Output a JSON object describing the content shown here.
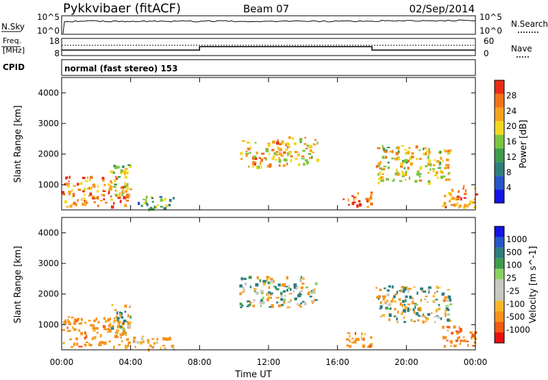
{
  "header": {
    "station": "Pykkvibaer (fitACF)",
    "beam": "Beam 07",
    "date": "02/Sep/2014"
  },
  "status": {
    "nsky_label": "N.Sky",
    "nsky_ticks": [
      "10^5",
      "10^0"
    ],
    "nsearch_label": "N.Search",
    "nsearch_ticks": [
      "10^5",
      "10^0"
    ],
    "freq_label_1": "Freq.",
    "freq_label_2": "[MHz]",
    "freq_ticks": [
      "18",
      "8"
    ],
    "nave_label": "Nave",
    "nave_ticks": [
      "60",
      "0"
    ],
    "cpid_label": "CPID",
    "cpid_text": "normal (fast stereo) 153"
  },
  "colors": {
    "power_scale": [
      "#1414e6",
      "#2457c8",
      "#2e7d7d",
      "#3b9d4c",
      "#7cc640",
      "#f2d820",
      "#f7a21b",
      "#f27318",
      "#e82c15"
    ],
    "velocity_scale": [
      "#e80f0f",
      "#f25a14",
      "#f7921b",
      "#f5b829",
      "#c8c8c0",
      "#c8c8c0",
      "#8ad060",
      "#3b9d4c",
      "#2e7d7d",
      "#2457c8",
      "#1414e6"
    ],
    "grey_scatter": "#c8c8c0",
    "trace": "#000000"
  },
  "chart_data": [
    {
      "type": "heatmap",
      "panel": "power",
      "ylabel": "Slant Range [km]",
      "ylim": [
        180,
        4500
      ],
      "yticks": [
        "4000",
        "3000",
        "2000",
        "1000"
      ],
      "xlim": [
        0,
        24
      ],
      "colorbar_label": "Power [dB]",
      "colorbar_ticks": [
        "28",
        "24",
        "20",
        "16",
        "12",
        "8",
        "4"
      ],
      "features": [
        {
          "t0": 0.0,
          "t1": 3.9,
          "r0": 300,
          "r1": 1300,
          "level": 26
        },
        {
          "t0": 2.8,
          "t1": 4.0,
          "r0": 700,
          "r1": 1700,
          "level": 18
        },
        {
          "t0": 4.0,
          "t1": 6.5,
          "r0": 220,
          "r1": 650,
          "level": 14
        },
        {
          "t0": 10.2,
          "t1": 13.0,
          "r0": 1600,
          "r1": 2500,
          "level": 22
        },
        {
          "t0": 13.0,
          "t1": 14.8,
          "r0": 1700,
          "r1": 2600,
          "level": 20
        },
        {
          "t0": 16.3,
          "t1": 18.0,
          "r0": 300,
          "r1": 800,
          "level": 28
        },
        {
          "t0": 18.2,
          "t1": 22.5,
          "r0": 1100,
          "r1": 2300,
          "level": 20
        },
        {
          "t0": 22.0,
          "t1": 24.0,
          "r0": 300,
          "r1": 1000,
          "level": 24
        }
      ]
    },
    {
      "type": "heatmap",
      "panel": "velocity",
      "ylabel": "Slant Range [km]",
      "ylim": [
        180,
        4500
      ],
      "yticks": [
        "4000",
        "3000",
        "2000",
        "1000"
      ],
      "xlim": [
        0,
        24
      ],
      "xticks": [
        "00:00",
        "04:00",
        "08:00",
        "12:00",
        "16:00",
        "20:00",
        "00:00"
      ],
      "xlabel": "Time UT",
      "colorbar_label": "Velocity [m s^-1]",
      "colorbar_ticks": [
        "1000",
        "500",
        "100",
        "25",
        "-25",
        "-100",
        "-500",
        "-1000"
      ],
      "features": [
        {
          "t0": 0.0,
          "t1": 3.9,
          "r0": 300,
          "r1": 1300,
          "level": -300
        },
        {
          "t0": 2.8,
          "t1": 4.0,
          "r0": 700,
          "r1": 1700,
          "level": 0
        },
        {
          "t0": 4.0,
          "t1": 6.5,
          "r0": 220,
          "r1": 650,
          "level": -200
        },
        {
          "t0": 10.2,
          "t1": 14.8,
          "r0": 1600,
          "r1": 2600,
          "level": 0
        },
        {
          "t0": 16.3,
          "t1": 18.0,
          "r0": 300,
          "r1": 800,
          "level": -300
        },
        {
          "t0": 18.2,
          "t1": 22.5,
          "r0": 1100,
          "r1": 2300,
          "level": 0
        },
        {
          "t0": 22.0,
          "t1": 24.0,
          "r0": 300,
          "r1": 1000,
          "level": -400
        }
      ]
    }
  ]
}
